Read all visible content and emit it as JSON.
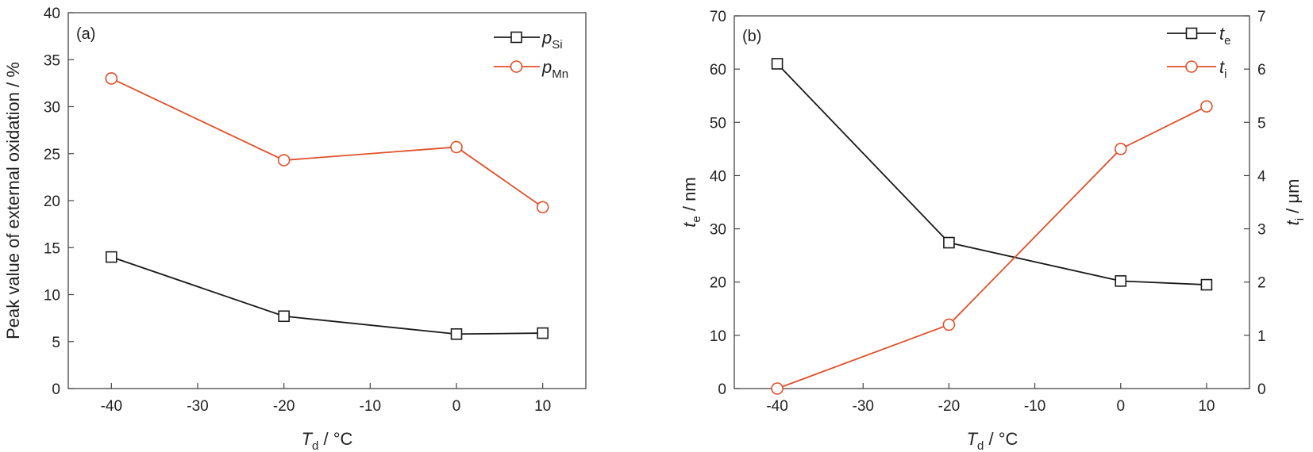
{
  "chart_data": [
    {
      "type": "line",
      "panel_label": "(a)",
      "x": [
        -40,
        -20,
        0,
        10
      ],
      "xlim": [
        -45,
        15
      ],
      "ylim": [
        0,
        40
      ],
      "xticks": [
        -40,
        -30,
        -20,
        -10,
        0,
        10
      ],
      "yticks": [
        0,
        5,
        10,
        15,
        20,
        25,
        30,
        35,
        40
      ],
      "xlabel": {
        "main": "T",
        "sub": "d",
        "rest": " / °C"
      },
      "ylabel": "Peak value of external oxidation / %",
      "legend_position": "top-right",
      "grid": false,
      "series": [
        {
          "name_main": "p",
          "name_sub": "Si",
          "marker": "square",
          "color": "#1a1a1a",
          "values": [
            14.0,
            7.7,
            5.8,
            5.9
          ]
        },
        {
          "name_main": "p",
          "name_sub": "Mn",
          "marker": "circle",
          "color": "#e0502a",
          "values": [
            33.0,
            24.3,
            25.7,
            19.3
          ]
        }
      ]
    },
    {
      "type": "line",
      "panel_label": "(b)",
      "x": [
        -40,
        -20,
        0,
        10
      ],
      "xlim": [
        -45,
        15
      ],
      "ylim": [
        0,
        70
      ],
      "ylim_right": [
        0,
        7
      ],
      "xticks": [
        -40,
        -30,
        -20,
        -10,
        0,
        10
      ],
      "yticks": [
        0,
        10,
        20,
        30,
        40,
        50,
        60,
        70
      ],
      "yticks_right": [
        0,
        1,
        2,
        3,
        4,
        5,
        6,
        7
      ],
      "xlabel": {
        "main": "T",
        "sub": "d",
        "rest": " / °C"
      },
      "ylabel": {
        "main": "t",
        "sub": "e",
        "rest": " / nm"
      },
      "ylabel_right": {
        "main": "t",
        "sub": "i",
        "rest": " / μm"
      },
      "legend_position": "top-right",
      "grid": false,
      "series": [
        {
          "name_main": "t",
          "name_sub": "e",
          "axis": "left",
          "marker": "square",
          "color": "#1a1a1a",
          "values": [
            61.0,
            27.4,
            20.2,
            19.5
          ]
        },
        {
          "name_main": "t",
          "name_sub": "i",
          "axis": "right",
          "marker": "circle",
          "color": "#e0502a",
          "values": [
            0.0,
            1.2,
            4.5,
            5.3
          ]
        }
      ]
    }
  ]
}
